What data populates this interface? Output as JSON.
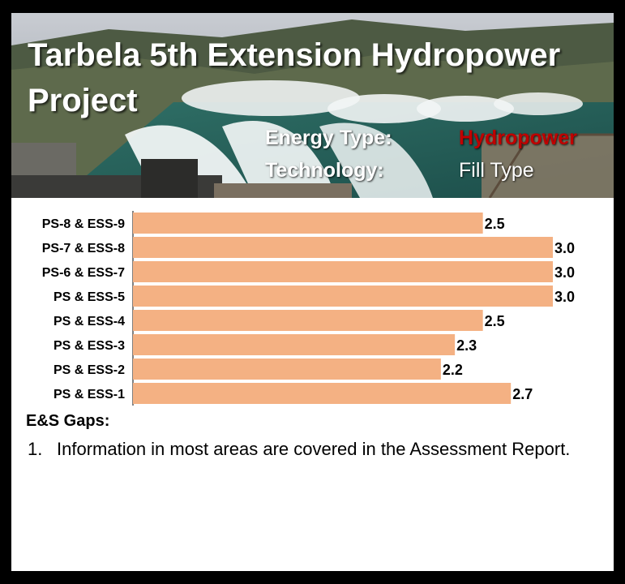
{
  "header": {
    "title": "Tarbela 5th Extension Hydropower Project",
    "energy_type_label": "Energy Type:",
    "energy_type_value": "Hydropower",
    "technology_label": "Technology:",
    "technology_value": "Fill Type"
  },
  "colors": {
    "bar": "#f4b183",
    "energy_type_value": "#c00000",
    "frame": "#000000"
  },
  "chart_data": {
    "type": "bar",
    "orientation": "horizontal",
    "categories": [
      "PS-8 & ESS-9",
      "PS-7 & ESS-8",
      "PS-6 & ESS-7",
      "PS & ESS-5",
      "PS & ESS-4",
      "PS & ESS-3",
      "PS & ESS-2",
      "PS & ESS-1"
    ],
    "values": [
      2.5,
      3.0,
      3.0,
      3.0,
      2.5,
      2.3,
      2.2,
      2.7
    ],
    "data_labels": [
      "2.5",
      "3.0",
      "3.0",
      "3.0",
      "2.5",
      "2.3",
      "2.2",
      "2.7"
    ],
    "xlim": [
      0,
      3.0
    ],
    "grid": false,
    "legend": "none"
  },
  "gaps": {
    "heading": "E&S Gaps:",
    "items": [
      {
        "num": "1.",
        "text": "Information in most areas are covered in the Assessment Report."
      }
    ]
  }
}
